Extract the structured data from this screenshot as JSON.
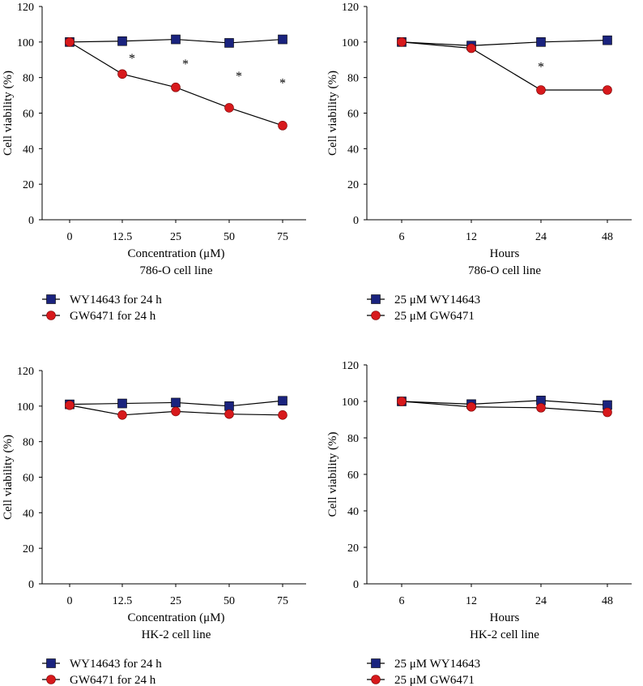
{
  "colors": {
    "wy": "#1a237e",
    "gw": "#d7191c",
    "axis": "#000000"
  },
  "chart_data": [
    {
      "type": "line",
      "categories": [
        "0",
        "12.5",
        "25",
        "50",
        "75"
      ],
      "series": [
        {
          "name": "WY14643 for 24 h",
          "marker": "square",
          "values": [
            100,
            100.5,
            101.5,
            99.5,
            101.5
          ]
        },
        {
          "name": "GW6471 for 24 h",
          "marker": "circle",
          "values": [
            100,
            82,
            74.5,
            63,
            53
          ]
        }
      ],
      "asterisks": [
        1,
        2,
        3,
        4
      ],
      "xlabel": "Concentration (μM)",
      "caption": "786-O cell line",
      "ylabel": "Cell viability (%)",
      "ylim": [
        0,
        120
      ],
      "yticks": [
        0,
        20,
        40,
        60,
        80,
        100,
        120
      ]
    },
    {
      "type": "line",
      "categories": [
        "6",
        "12",
        "24",
        "48"
      ],
      "series": [
        {
          "name": "25 μM WY14643",
          "marker": "square",
          "values": [
            100,
            98,
            100,
            101
          ]
        },
        {
          "name": "25 μM GW6471",
          "marker": "circle",
          "values": [
            100,
            96.5,
            73,
            73
          ]
        }
      ],
      "asterisks": [
        2
      ],
      "xlabel": "Hours",
      "caption": "786-O cell line",
      "ylabel": "Cell viability (%)",
      "ylim": [
        0,
        120
      ],
      "yticks": [
        0,
        20,
        40,
        60,
        80,
        100,
        120
      ]
    },
    {
      "type": "line",
      "categories": [
        "0",
        "12.5",
        "25",
        "50",
        "75"
      ],
      "series": [
        {
          "name": "WY14643 for 24 h",
          "marker": "square",
          "values": [
            101,
            101.5,
            102,
            100,
            103
          ]
        },
        {
          "name": "GW6471 for 24 h",
          "marker": "circle",
          "values": [
            100.5,
            95,
            97,
            95.5,
            95
          ]
        }
      ],
      "asterisks": [],
      "xlabel": "Concentration (μM)",
      "caption": "HK-2 cell line",
      "ylabel": "Cell viability (%)",
      "ylim": [
        0,
        120
      ],
      "yticks": [
        0,
        20,
        40,
        60,
        80,
        100,
        120
      ]
    },
    {
      "type": "line",
      "categories": [
        "6",
        "12",
        "24",
        "48"
      ],
      "series": [
        {
          "name": "25 μM WY14643",
          "marker": "square",
          "values": [
            100,
            98.5,
            100.5,
            98
          ]
        },
        {
          "name": "25 μM GW6471",
          "marker": "circle",
          "values": [
            100,
            97,
            96.5,
            94
          ]
        }
      ],
      "asterisks": [],
      "xlabel": "Hours",
      "caption": "HK-2 cell line",
      "ylabel": "Cell viability (%)",
      "ylim": [
        0,
        120
      ],
      "yticks": [
        0,
        20,
        40,
        60,
        80,
        100,
        120
      ]
    }
  ]
}
